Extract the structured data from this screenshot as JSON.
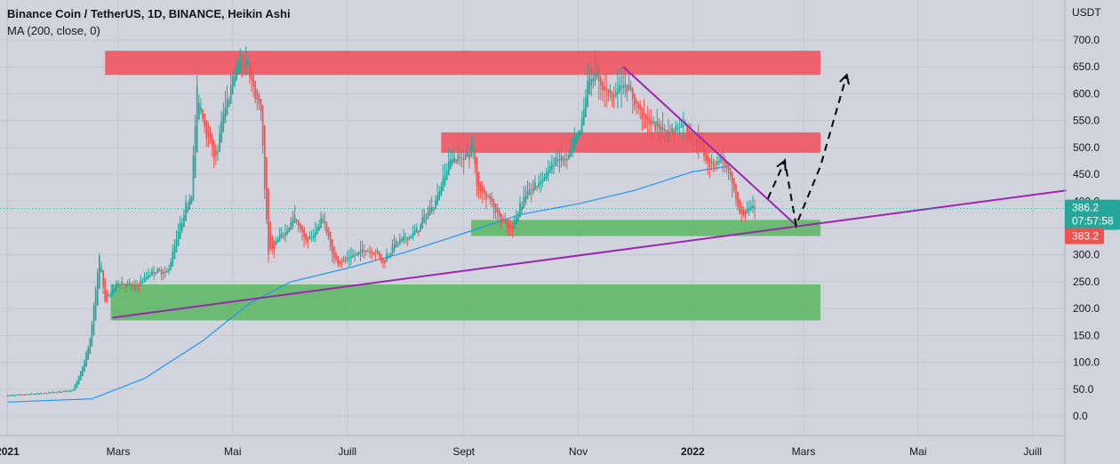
{
  "header": {
    "symbol_line": "Binance Coin / TetherUS, 1D, BINANCE, Heikin Ashi",
    "indicator_line": "MA (200, close, 0)",
    "currency_label": "USDT"
  },
  "colors": {
    "background": "#d1d4dc",
    "up_candle": "#26a69a",
    "down_candle": "#ef5350",
    "ma_line": "#2196f3",
    "trendline": "#9c27b0",
    "resistance_zone": "#f05865",
    "support_zone": "#5fb866",
    "price_tag_current": "#26a69a",
    "price_tag_low": "#ef5350"
  },
  "price_tags": {
    "current_price": "386.2",
    "countdown": "07:57:58",
    "low_price": "383.2"
  },
  "chart_data": {
    "type": "candlestick",
    "style": "Heikin Ashi",
    "interval": "1D",
    "x_labels": [
      "2021",
      "Mars",
      "Mai",
      "Juill",
      "Sept",
      "Nov",
      "2022",
      "Mars",
      "Mai",
      "Juill"
    ],
    "x_label_dates": [
      "2021-01-01",
      "2021-03-01",
      "2021-05-01",
      "2021-07-01",
      "2021-09-01",
      "2021-11-01",
      "2022-01-01",
      "2022-03-01",
      "2022-05-01",
      "2022-07-01"
    ],
    "y_ticks": [
      "700.0",
      "650.0",
      "600.0",
      "550.0",
      "500.0",
      "450.0",
      "400.0",
      "350.0",
      "300.0",
      "250.0",
      "200.0",
      "150.0",
      "100.0",
      "50.0",
      "0.0"
    ],
    "ylim": [
      -20,
      725
    ],
    "xlim": [
      "2021-01-01",
      "2022-07-19"
    ],
    "price_path": [
      [
        "2021-01-01",
        38
      ],
      [
        "2021-01-20",
        42
      ],
      [
        "2021-02-05",
        48
      ],
      [
        "2021-02-10",
        90
      ],
      [
        "2021-02-14",
        140
      ],
      [
        "2021-02-19",
        300
      ],
      [
        "2021-02-22",
        210
      ],
      [
        "2021-03-01",
        250
      ],
      [
        "2021-03-10",
        240
      ],
      [
        "2021-03-20",
        270
      ],
      [
        "2021-03-27",
        265
      ],
      [
        "2021-04-02",
        340
      ],
      [
        "2021-04-09",
        420
      ],
      [
        "2021-04-12",
        600
      ],
      [
        "2021-04-18",
        520
      ],
      [
        "2021-04-22",
        480
      ],
      [
        "2021-04-26",
        560
      ],
      [
        "2021-05-03",
        650
      ],
      [
        "2021-05-09",
        660
      ],
      [
        "2021-05-13",
        600
      ],
      [
        "2021-05-16",
        560
      ],
      [
        "2021-05-18",
        430
      ],
      [
        "2021-05-20",
        300
      ],
      [
        "2021-05-24",
        320
      ],
      [
        "2021-06-03",
        370
      ],
      [
        "2021-06-10",
        320
      ],
      [
        "2021-06-18",
        370
      ],
      [
        "2021-06-24",
        290
      ],
      [
        "2021-07-01",
        290
      ],
      [
        "2021-07-10",
        310
      ],
      [
        "2021-07-17",
        305
      ],
      [
        "2021-07-20",
        285
      ],
      [
        "2021-07-26",
        320
      ],
      [
        "2021-08-06",
        340
      ],
      [
        "2021-08-17",
        400
      ],
      [
        "2021-08-25",
        480
      ],
      [
        "2021-09-01",
        480
      ],
      [
        "2021-09-06",
        500
      ],
      [
        "2021-09-08",
        430
      ],
      [
        "2021-09-14",
        410
      ],
      [
        "2021-09-20",
        370
      ],
      [
        "2021-09-26",
        345
      ],
      [
        "2021-10-02",
        400
      ],
      [
        "2021-10-12",
        440
      ],
      [
        "2021-10-21",
        480
      ],
      [
        "2021-10-26",
        475
      ],
      [
        "2021-11-02",
        530
      ],
      [
        "2021-11-06",
        620
      ],
      [
        "2021-11-10",
        640
      ],
      [
        "2021-11-14",
        610
      ],
      [
        "2021-11-20",
        600
      ],
      [
        "2021-11-25",
        620
      ],
      [
        "2021-12-02",
        580
      ],
      [
        "2021-12-10",
        540
      ],
      [
        "2021-12-20",
        530
      ],
      [
        "2021-12-27",
        545
      ],
      [
        "2022-01-04",
        510
      ],
      [
        "2022-01-10",
        470
      ],
      [
        "2022-01-17",
        480
      ],
      [
        "2022-01-22",
        430
      ],
      [
        "2022-01-26",
        375
      ],
      [
        "2022-01-31",
        385
      ],
      [
        "2022-02-03",
        386
      ]
    ],
    "moving_average": {
      "label": "MA (200, close, 0)",
      "points": [
        [
          "2021-01-01",
          26
        ],
        [
          "2021-02-15",
          32
        ],
        [
          "2021-03-15",
          70
        ],
        [
          "2021-04-15",
          140
        ],
        [
          "2021-05-10",
          210
        ],
        [
          "2021-06-01",
          250
        ],
        [
          "2021-07-01",
          275
        ],
        [
          "2021-08-01",
          305
        ],
        [
          "2021-09-01",
          340
        ],
        [
          "2021-10-01",
          375
        ],
        [
          "2021-11-01",
          395
        ],
        [
          "2021-12-01",
          420
        ],
        [
          "2022-01-01",
          455
        ],
        [
          "2022-01-20",
          465
        ]
      ]
    },
    "drawings": {
      "resistance_zones": [
        {
          "from": "2021-02-22",
          "to": "2022-03-10",
          "low": 635,
          "high": 680
        },
        {
          "from": "2021-08-20",
          "to": "2022-03-10",
          "low": 490,
          "high": 528
        }
      ],
      "support_zones": [
        {
          "from": "2021-09-05",
          "to": "2022-03-10",
          "low": 335,
          "high": 365
        },
        {
          "from": "2021-02-25",
          "to": "2022-03-10",
          "low": 178,
          "high": 245
        }
      ],
      "trendlines": [
        {
          "from": [
            "2021-02-26",
            183
          ],
          "to": [
            "2022-07-19",
            420
          ]
        },
        {
          "from": [
            "2021-11-25",
            650
          ],
          "to": [
            "2022-02-26",
            352
          ]
        }
      ],
      "projection_path": [
        [
          "2022-02-10",
          405
        ],
        [
          "2022-02-19",
          475
        ],
        [
          "2022-02-25",
          355
        ],
        [
          "2022-03-10",
          465
        ],
        [
          "2022-03-24",
          635
        ]
      ]
    }
  }
}
